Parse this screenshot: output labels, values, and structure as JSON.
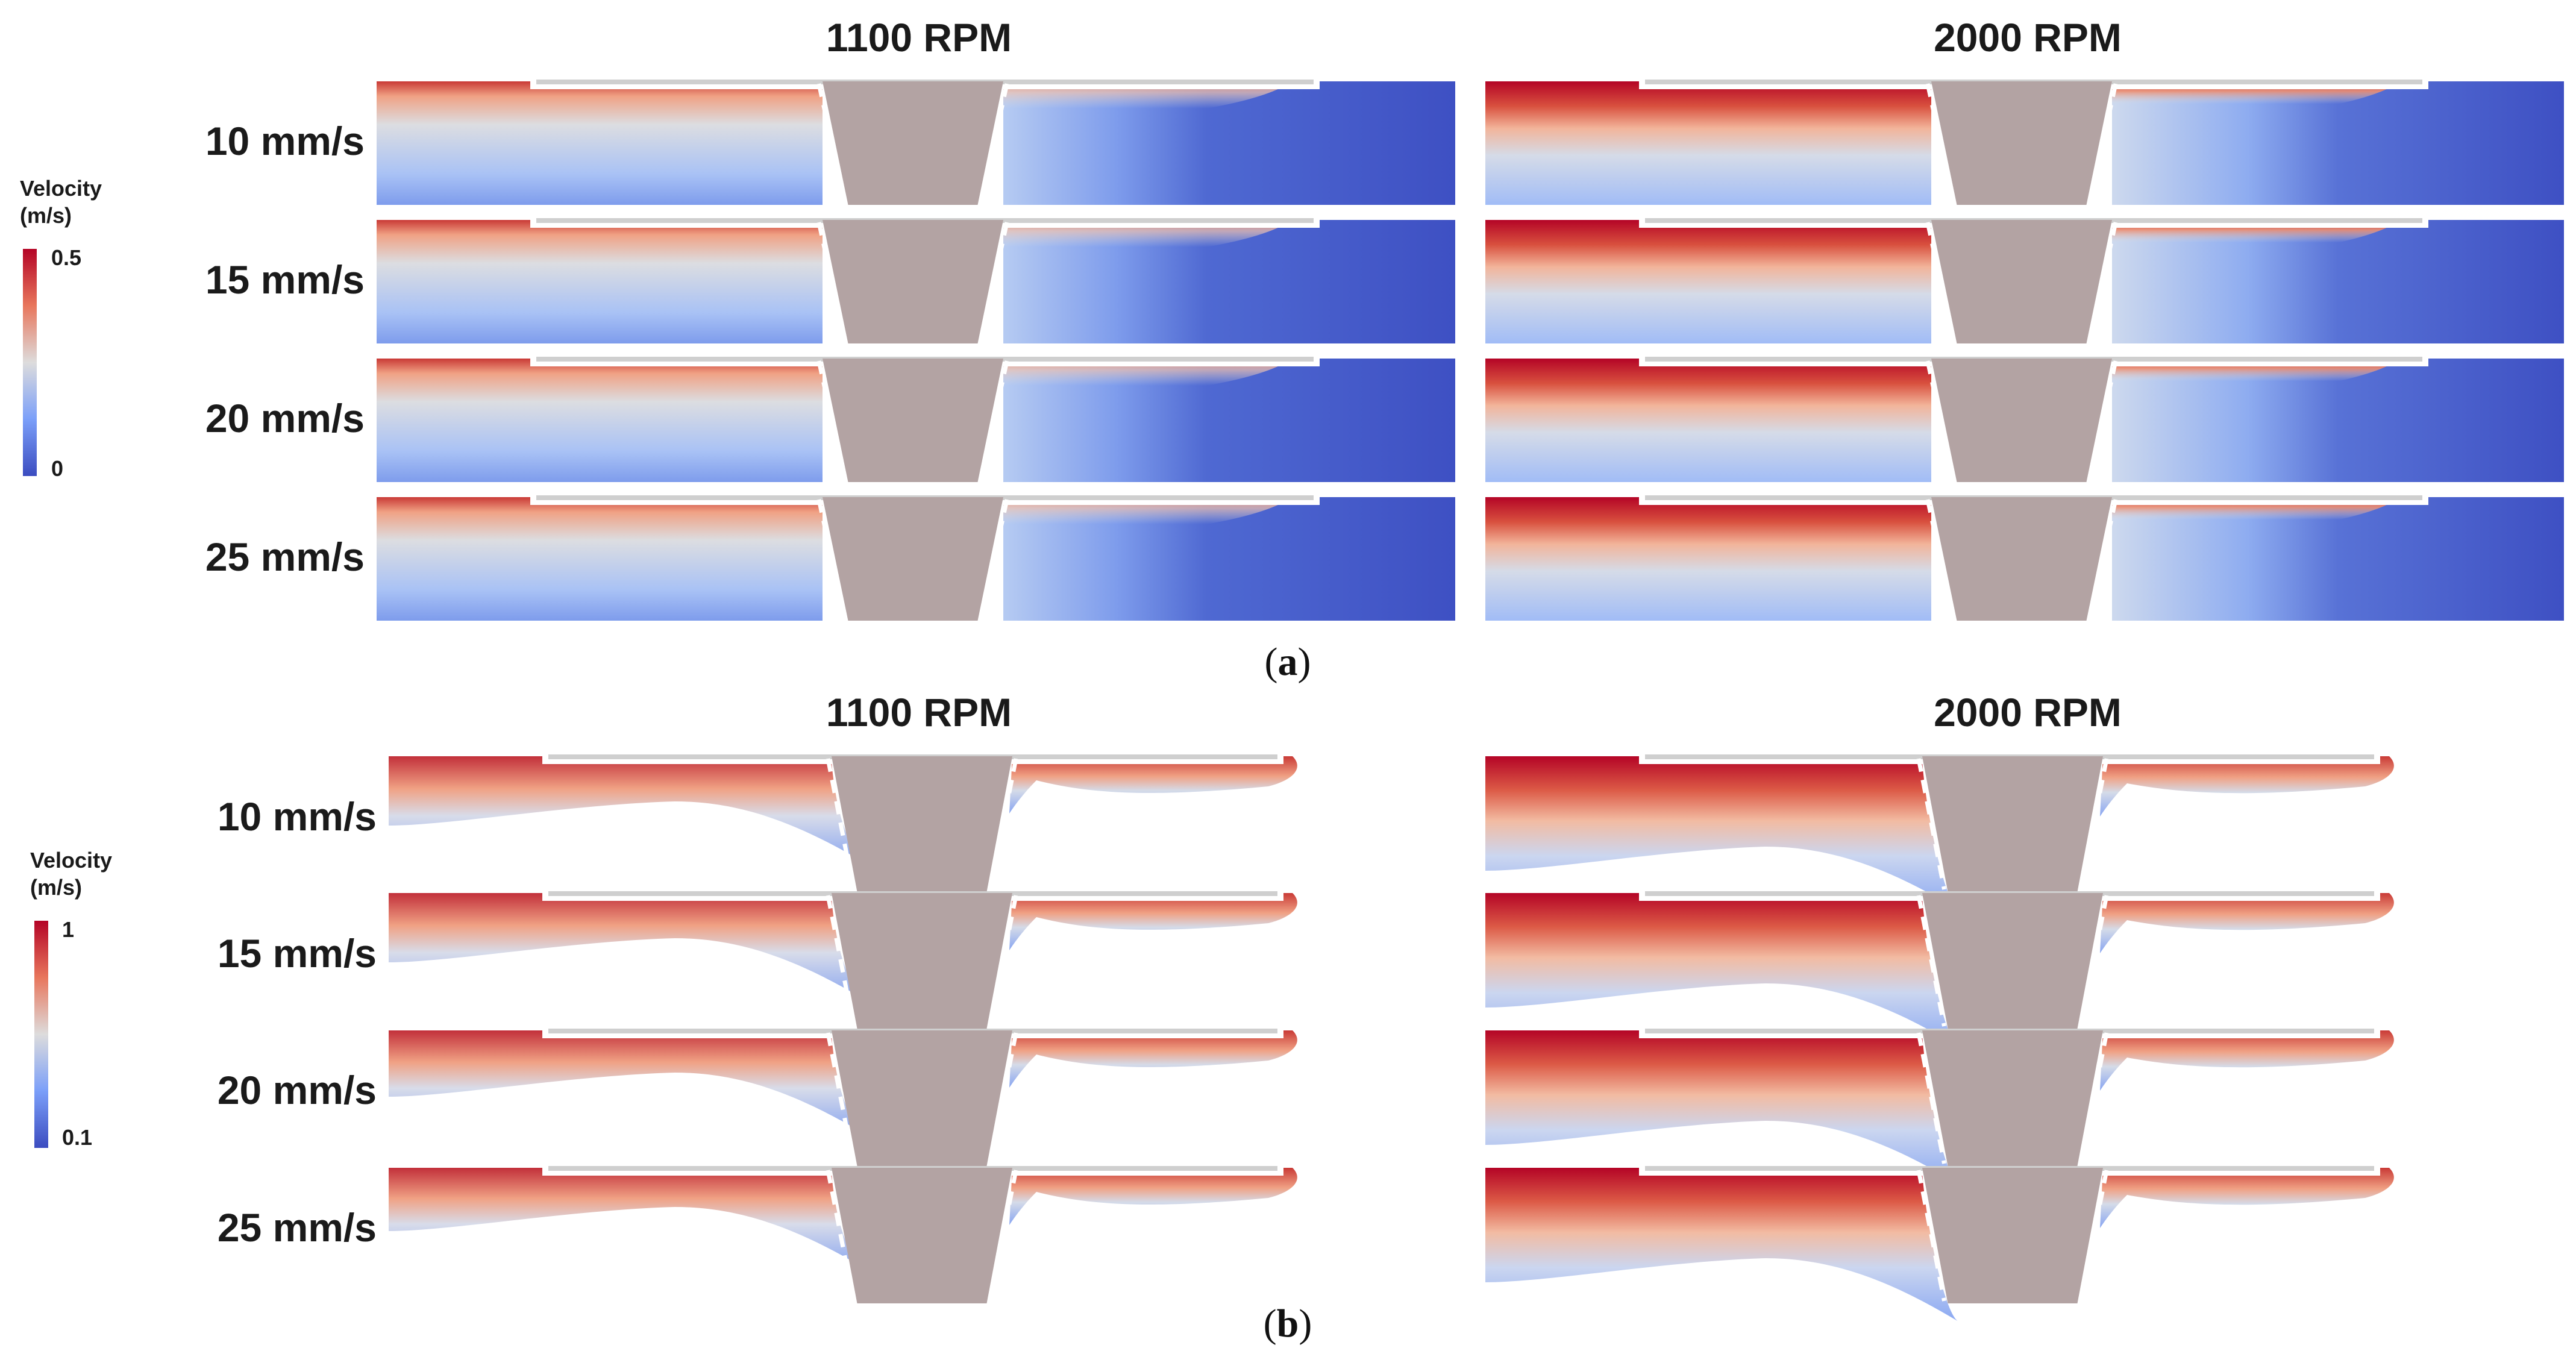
{
  "colors": {
    "high": "#b40426",
    "mid": "#dddcdc",
    "low": "#3b4cc0",
    "nozzle": "#b3a3a3",
    "slot": "#cfcfcf"
  },
  "part_a": {
    "label": "a",
    "legend": {
      "title_line1": "Velocity",
      "title_line2": "(m/s)",
      "max": "0.5",
      "min": "0"
    },
    "columns": [
      "1100 RPM",
      "2000 RPM"
    ],
    "rows": [
      "10 mm/s",
      "15 mm/s",
      "20 mm/s",
      "25 mm/s"
    ]
  },
  "part_b": {
    "label": "b",
    "legend": {
      "title_line1": "Velocity",
      "title_line2": "(m/s)",
      "max": "1",
      "min": "0.1"
    },
    "columns": [
      "1100 RPM",
      "2000 RPM"
    ],
    "rows": [
      "10 mm/s",
      "15 mm/s",
      "20 mm/s",
      "25 mm/s"
    ]
  }
}
